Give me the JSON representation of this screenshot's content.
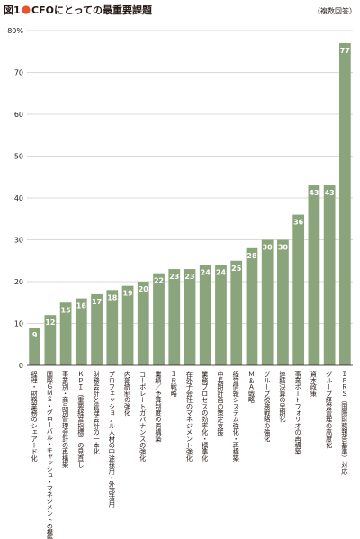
{
  "figure": {
    "prefix": "図1",
    "title": "CFOにとっての最重要課題",
    "note": "（複数回答）"
  },
  "colors": {
    "bar": "#8aa57c",
    "dot": "#e8542a",
    "text": "#231815",
    "grid": "#b5b5b5"
  },
  "chart_data": {
    "type": "bar",
    "orientation": "vertical",
    "y_unit_label": "80%",
    "ylim": [
      0,
      80
    ],
    "yticks": [
      0,
      10,
      20,
      30,
      40,
      50,
      60,
      70,
      80
    ],
    "grid": true,
    "categories": [
      "経理・財務業務のシェアード化",
      "国際ＧＭＳ・グローバル・キャッシュ・マネジメントの構築",
      "事業別・商品別管理会計の再構築",
      "ＫＰＩ（重要経営指標）の見直し",
      "財務会計と管理会計の一本化",
      "プロフェッショナル人材の中途採用・外部活用",
      "内部統制の強化",
      "コーポレートガバナンスの強化",
      "業績／予算制度の再構築",
      "ＩＲ戦略",
      "在外子会社のマネジメント強化",
      "業務プロセスの効率化・標準化",
      "中長期計画の策定支援",
      "経営情報システム強化・再構築",
      "Ｍ＆Ａ戦略",
      "グループ税務戦略の強化",
      "連結決算の早期化",
      "事業ポートフォリオの再構築",
      "資本政策",
      "グループ経営管理の高度化",
      "ＩＦＲＳ（国際財務報告基準）対応"
    ],
    "values": [
      9,
      12,
      15,
      16,
      17,
      18,
      19,
      20,
      22,
      23,
      23,
      24,
      24,
      25,
      28,
      30,
      30,
      36,
      43,
      43,
      77
    ]
  }
}
